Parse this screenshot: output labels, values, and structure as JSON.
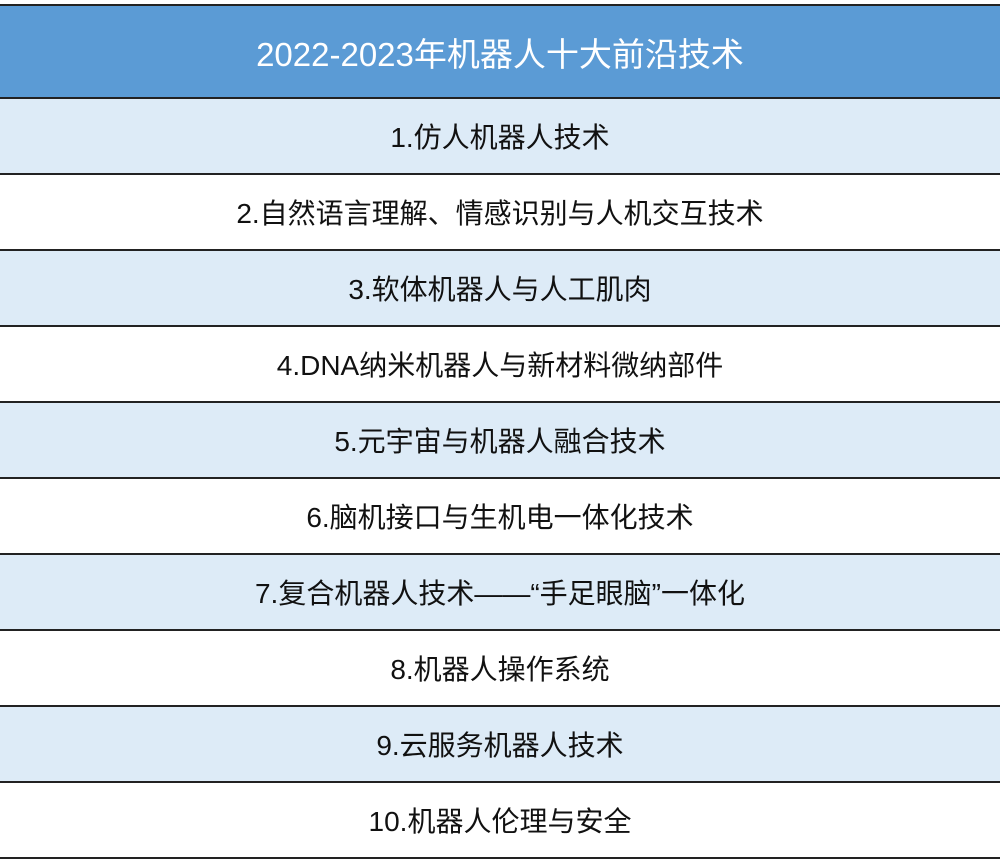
{
  "title": "2022-2023年机器人十大前沿技术",
  "colors": {
    "header_bg": "#5b9bd5",
    "alt_row_bg": "#ddebf7"
  },
  "items": [
    "1.仿人机器人技术",
    "2.自然语言理解、情感识别与人机交互技术",
    "3.软体机器人与人工肌肉",
    "4.DNA纳米机器人与新材料微纳部件",
    "5.元宇宙与机器人融合技术",
    "6.脑机接口与生机电一体化技术",
    "7.复合机器人技术——“手足眼脑”一体化",
    "8.机器人操作系统",
    "9.云服务机器人技术",
    "10.机器人伦理与安全"
  ]
}
